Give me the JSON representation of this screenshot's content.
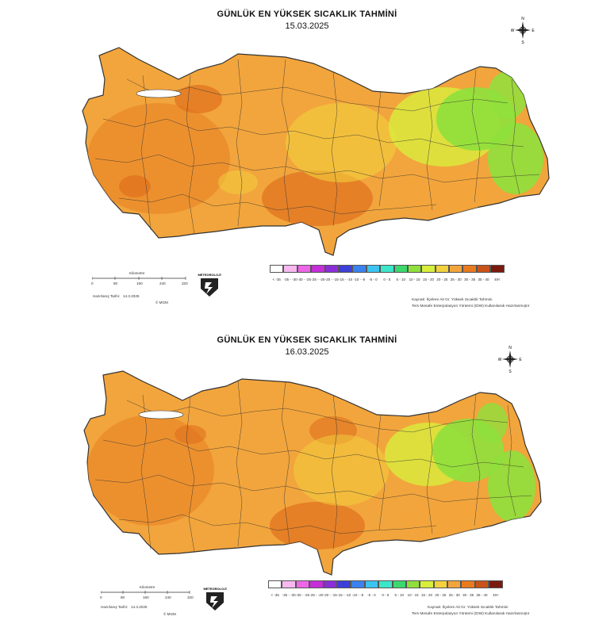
{
  "panels": [
    {
      "title": "GÜNLÜK EN YÜKSEK SICAKLIK TAHMİNİ",
      "date": "15.03.2025",
      "prepared_label": "Hazırlanış Tarihi:",
      "prepared_date": "14.3.2025",
      "copyright": "© MGM",
      "scale_title": "Kilometre",
      "scale_ticks": [
        "0",
        "80",
        "160",
        "240",
        "320"
      ],
      "source_note_1": "Kaynak: İlçelere Ait Gr. Yüksek Sıcaklık Tahmini",
      "source_note_2": "Ters Mesafe Enterpolasyon Yöntemi (IDW) Kullanılarak Hazırlanmıştır"
    },
    {
      "title": "GÜNLÜK EN YÜKSEK SICAKLIK TAHMİNİ",
      "date": "16.03.2025",
      "prepared_label": "Hazırlanış Tarihi:",
      "prepared_date": "14.3.2025",
      "copyright": "© MGM",
      "scale_title": "Kilometre",
      "scale_ticks": [
        "0",
        "80",
        "160",
        "240",
        "320"
      ],
      "source_note_1": "Kaynak: İlçelere Ait Gr. Yüksek Sıcaklık Tahmini",
      "source_note_2": "Ters Mesafe Enterpolasyon Yöntemi (IDW) Kullanılarak Hazırlanmıştır"
    }
  ],
  "compass_letters": {
    "n": "N",
    "s": "S",
    "e": "E",
    "w": "W"
  },
  "logo_text": "METEOROLOJİ",
  "legend": [
    {
      "label": "< -35",
      "color": "#ffffff"
    },
    {
      "label": "-35 - -30",
      "color": "#f7b8f0"
    },
    {
      "label": "-30 - -25",
      "color": "#ee66e8"
    },
    {
      "label": "-25 - -20",
      "color": "#c42fd8"
    },
    {
      "label": "-20 - -15",
      "color": "#8a2fd8"
    },
    {
      "label": "-15 - -10",
      "color": "#3d3fd8"
    },
    {
      "label": "-10 - -5",
      "color": "#3b82f0"
    },
    {
      "label": "-5 - 0",
      "color": "#3cc4f0"
    },
    {
      "label": "0 - 5",
      "color": "#3ce6c8"
    },
    {
      "label": "5 - 10",
      "color": "#3cd86e"
    },
    {
      "label": "10 - 15",
      "color": "#8fe03c"
    },
    {
      "label": "15 - 20",
      "color": "#d8ee3c"
    },
    {
      "label": "20 - 25",
      "color": "#f2d13c"
    },
    {
      "label": "25 - 30",
      "color": "#f2a53c"
    },
    {
      "label": "30 - 35",
      "color": "#ea7a1e"
    },
    {
      "label": "35 - 40",
      "color": "#c9541a"
    },
    {
      "label": "40<",
      "color": "#7a1a0e"
    }
  ],
  "map_colors": {
    "base": "#f2a53c",
    "warm": "#ea8a2a",
    "hot": "#e0701e",
    "mild": "#f2d13c",
    "cool": "#d8ee3c",
    "cold": "#8fe03c",
    "sea": "#ffffff"
  }
}
